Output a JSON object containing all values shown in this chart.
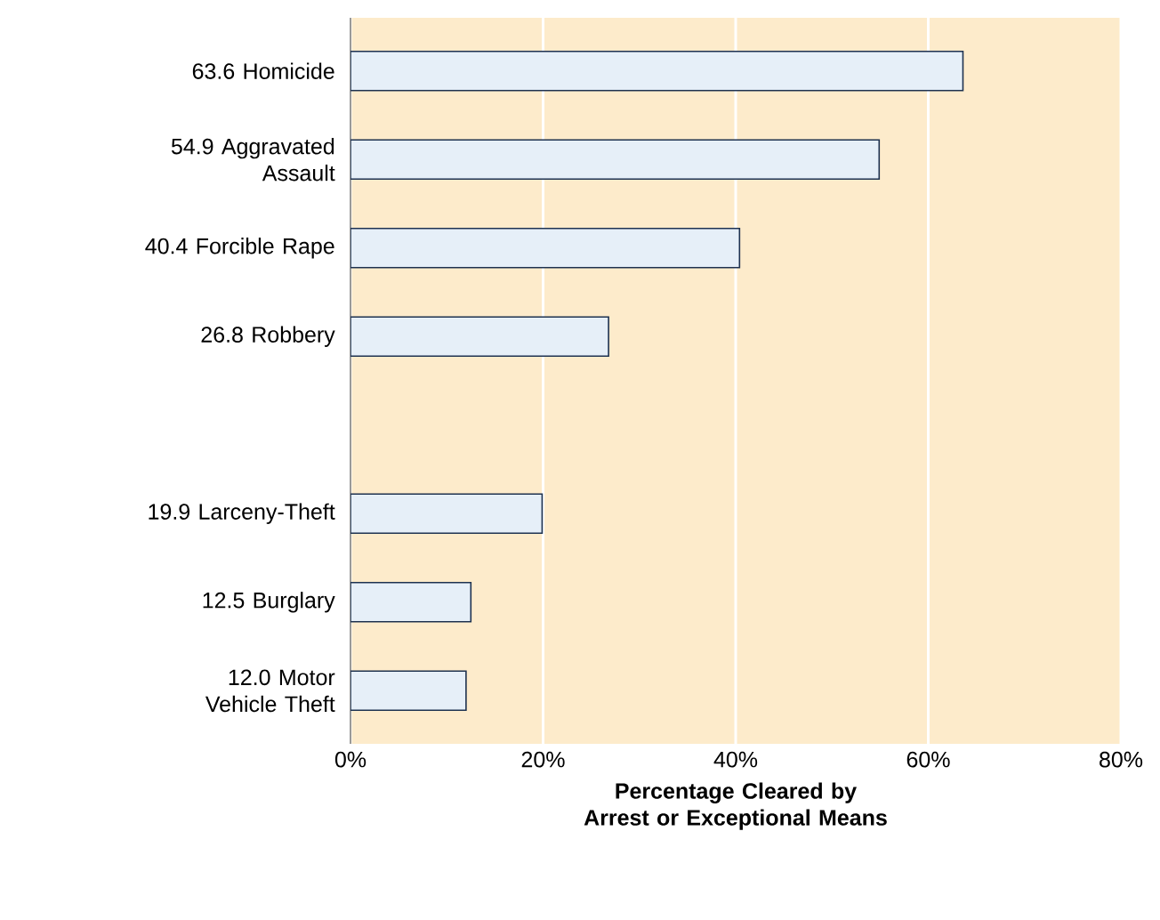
{
  "chart_data": {
    "type": "bar",
    "orientation": "horizontal",
    "categories": [
      "63.6 Homicide",
      "54.9 Aggravated Assault",
      "40.4 Forcible Rape",
      "26.8 Robbery",
      null,
      "19.9 Larceny-Theft",
      "12.5 Burglary",
      "12.0 Motor Vehicle Theft"
    ],
    "values": [
      63.6,
      54.9,
      40.4,
      26.8,
      null,
      19.9,
      12.5,
      12.0
    ],
    "color": "#e6eff8",
    "xlabel": "Percentage Cleared by Arrest or Exceptional Means",
    "xlim": [
      0,
      80
    ],
    "xticks": [
      {
        "value": 0,
        "label": "0%"
      },
      {
        "value": 20,
        "label": "20%"
      },
      {
        "value": 40,
        "label": "40%"
      },
      {
        "value": 60,
        "label": "60%"
      },
      {
        "value": 80,
        "label": "80%"
      }
    ],
    "grid": "x"
  }
}
